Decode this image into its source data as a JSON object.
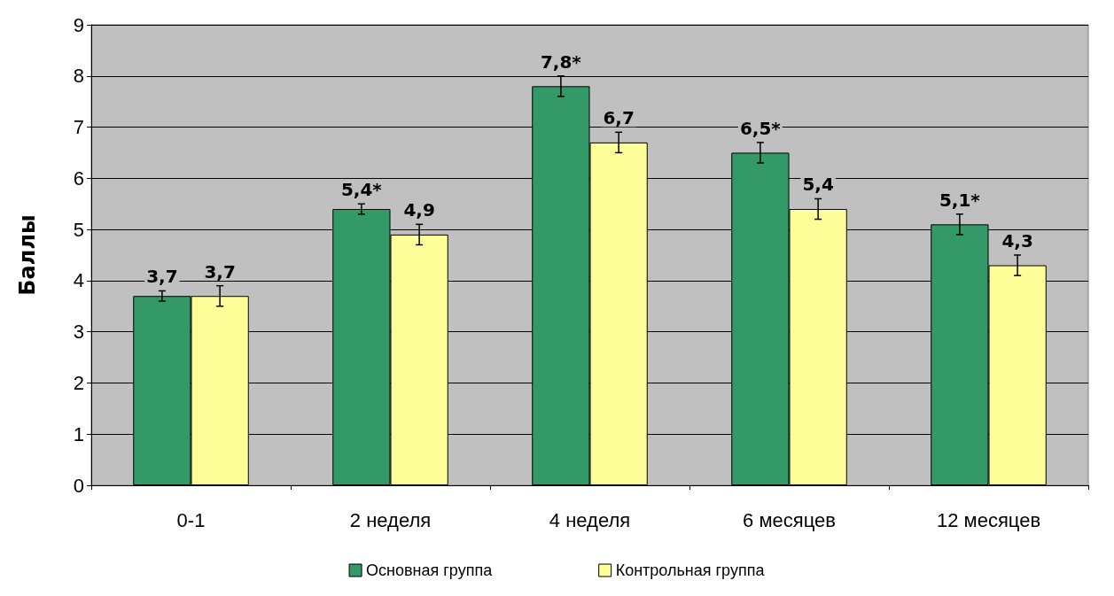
{
  "chart_data": {
    "type": "bar",
    "ylabel": "Баллы",
    "categories": [
      "0-1",
      "2 неделя",
      "4 неделя",
      "6 месяцев",
      "12 месяцев"
    ],
    "series": [
      {
        "name": "Основная группа",
        "color": "#339966",
        "values": [
          3.7,
          5.4,
          7.8,
          6.5,
          5.1
        ],
        "errors": [
          0.1,
          0.1,
          0.2,
          0.2,
          0.2
        ],
        "value_labels": [
          "3,7",
          "5,4*",
          "7,8*",
          "6,5*",
          "5,1*"
        ]
      },
      {
        "name": "Контрольная группа",
        "color": "#ffff99",
        "values": [
          3.7,
          4.9,
          6.7,
          5.4,
          4.3
        ],
        "errors": [
          0.2,
          0.2,
          0.2,
          0.2,
          0.2
        ],
        "value_labels": [
          "3,7",
          "4,9",
          "6,7",
          "5,4",
          "4,3"
        ]
      }
    ],
    "ylim": [
      0,
      9
    ],
    "yticks": [
      0,
      1,
      2,
      3,
      4,
      5,
      6,
      7,
      8,
      9
    ],
    "grid": "y",
    "legend": "bottom"
  }
}
